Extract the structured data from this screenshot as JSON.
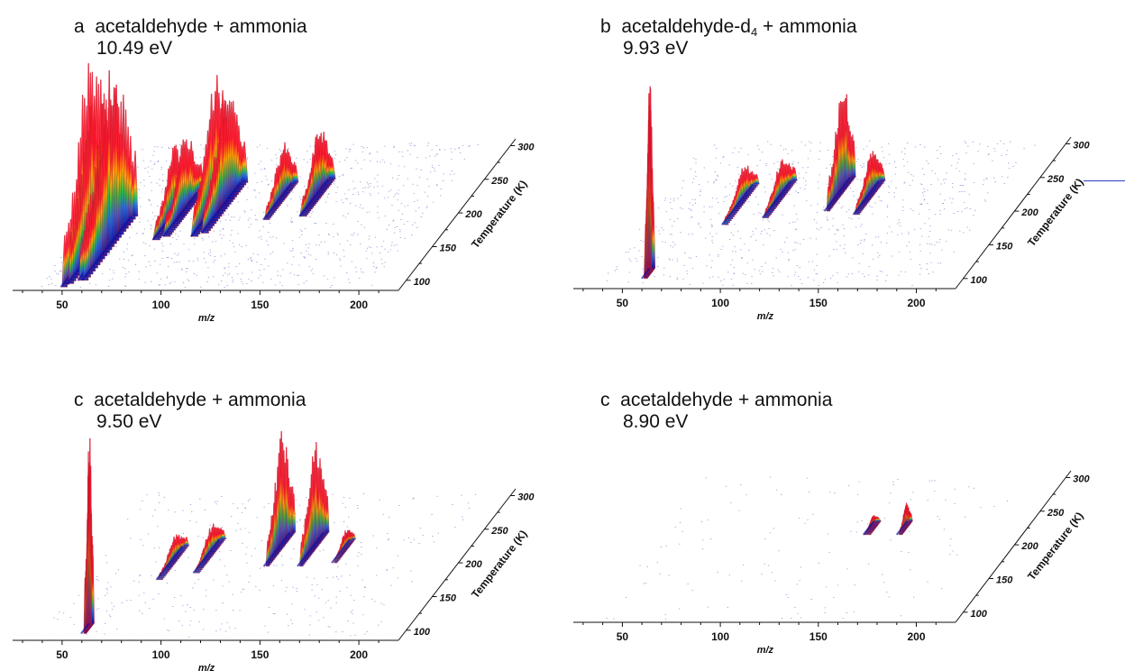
{
  "chart_data": [
    {
      "type": "area",
      "panel_label": "a",
      "title_main": "acetaldehyde + ammonia",
      "title_sup": "",
      "title_tail": "",
      "subtitle": "10.49 eV",
      "xlabel": "m/z",
      "zlabel": "Temperature (K)",
      "x_ticks": [
        "50",
        "100",
        "150",
        "200"
      ],
      "t_ticks": [
        "100",
        "150",
        "200",
        "250",
        "300"
      ],
      "xlim": [
        25,
        220
      ],
      "tlim": [
        85,
        310
      ],
      "peaks": [
        {
          "mz": 50,
          "height": 190,
          "t_start": 90,
          "t_end": 170,
          "w": 3
        },
        {
          "mz": 52,
          "height": 190,
          "t_start": 95,
          "t_end": 180,
          "w": 3
        },
        {
          "mz": 56,
          "height": 175,
          "t_start": 100,
          "t_end": 190,
          "w": 3
        },
        {
          "mz": 58,
          "height": 180,
          "t_start": 100,
          "t_end": 195,
          "w": 3
        },
        {
          "mz": 78,
          "height": 70,
          "t_start": 160,
          "t_end": 220,
          "w": 4
        },
        {
          "mz": 82,
          "height": 80,
          "t_start": 165,
          "t_end": 230,
          "w": 4
        },
        {
          "mz": 96,
          "height": 130,
          "t_start": 165,
          "t_end": 240,
          "w": 4
        },
        {
          "mz": 100,
          "height": 120,
          "t_start": 170,
          "t_end": 245,
          "w": 4
        },
        {
          "mz": 126,
          "height": 55,
          "t_start": 190,
          "t_end": 245,
          "w": 3
        },
        {
          "mz": 143,
          "height": 70,
          "t_start": 195,
          "t_end": 250,
          "w": 4
        }
      ],
      "stray_line": null,
      "density": 1.0
    },
    {
      "type": "area",
      "panel_label": "b",
      "title_main": "acetaldehyde-d",
      "title_sup": "4",
      "title_tail": " + ammonia",
      "subtitle": "9.93 eV",
      "xlabel": "m/z",
      "zlabel": "Temperature (K)",
      "x_ticks": [
        "50",
        "100",
        "150",
        "200"
      ],
      "t_ticks": [
        "100",
        "150",
        "200",
        "250",
        "300"
      ],
      "xlim": [
        25,
        220
      ],
      "tlim": [
        85,
        310
      ],
      "peaks": [
        {
          "mz": 58,
          "height": 195,
          "t_start": 100,
          "t_end": 115,
          "w": 2
        },
        {
          "mz": 78,
          "height": 35,
          "t_start": 180,
          "t_end": 240,
          "w": 3
        },
        {
          "mz": 96,
          "height": 40,
          "t_start": 190,
          "t_end": 245,
          "w": 3
        },
        {
          "mz": 125,
          "height": 110,
          "t_start": 200,
          "t_end": 250,
          "w": 2
        },
        {
          "mz": 141,
          "height": 45,
          "t_start": 195,
          "t_end": 245,
          "w": 3
        }
      ],
      "stray_line": {
        "t": 245
      },
      "density": 0.8
    },
    {
      "type": "area",
      "panel_label": "c",
      "title_main": "acetaldehyde + ammonia",
      "title_sup": "",
      "title_tail": "",
      "subtitle": "9.50 eV",
      "xlabel": "m/z",
      "zlabel": "Temperature (K)",
      "x_ticks": [
        "50",
        "100",
        "150",
        "200"
      ],
      "t_ticks": [
        "100",
        "150",
        "200",
        "250",
        "300"
      ],
      "xlim": [
        25,
        220
      ],
      "tlim": [
        85,
        310
      ],
      "peaks": [
        {
          "mz": 59,
          "height": 195,
          "t_start": 95,
          "t_end": 110,
          "w": 1.5
        },
        {
          "mz": 76,
          "height": 25,
          "t_start": 175,
          "t_end": 225,
          "w": 3
        },
        {
          "mz": 92,
          "height": 30,
          "t_start": 185,
          "t_end": 235,
          "w": 3
        },
        {
          "mz": 125,
          "height": 115,
          "t_start": 195,
          "t_end": 245,
          "w": 2
        },
        {
          "mz": 142,
          "height": 105,
          "t_start": 195,
          "t_end": 245,
          "w": 2
        },
        {
          "mz": 158,
          "height": 20,
          "t_start": 200,
          "t_end": 235,
          "w": 2
        }
      ],
      "stray_line": null,
      "density": 0.4
    },
    {
      "type": "area",
      "panel_label": "c",
      "title_main": "acetaldehyde + ammonia",
      "title_sup": "",
      "title_tail": "",
      "subtitle": "8.90 eV",
      "xlabel": "m/z",
      "zlabel": "Temperature (K)",
      "x_ticks": [
        "50",
        "100",
        "150",
        "200"
      ],
      "t_ticks": [
        "100",
        "150",
        "200",
        "250",
        "300"
      ],
      "xlim": [
        25,
        220
      ],
      "tlim": [
        85,
        310
      ],
      "peaks": [
        {
          "mz": 141,
          "height": 12,
          "t_start": 215,
          "t_end": 235,
          "w": 4
        },
        {
          "mz": 158,
          "height": 25,
          "t_start": 215,
          "t_end": 235,
          "w": 2
        }
      ],
      "stray_line": null,
      "density": 0.15
    }
  ],
  "colors": {
    "peak_top": "#ff1a2e",
    "peak_mid": "#ffb000",
    "peak_green": "#22c04a",
    "peak_base": "#1010a0",
    "noise": "#3a3ab0",
    "axis": "#111111"
  }
}
